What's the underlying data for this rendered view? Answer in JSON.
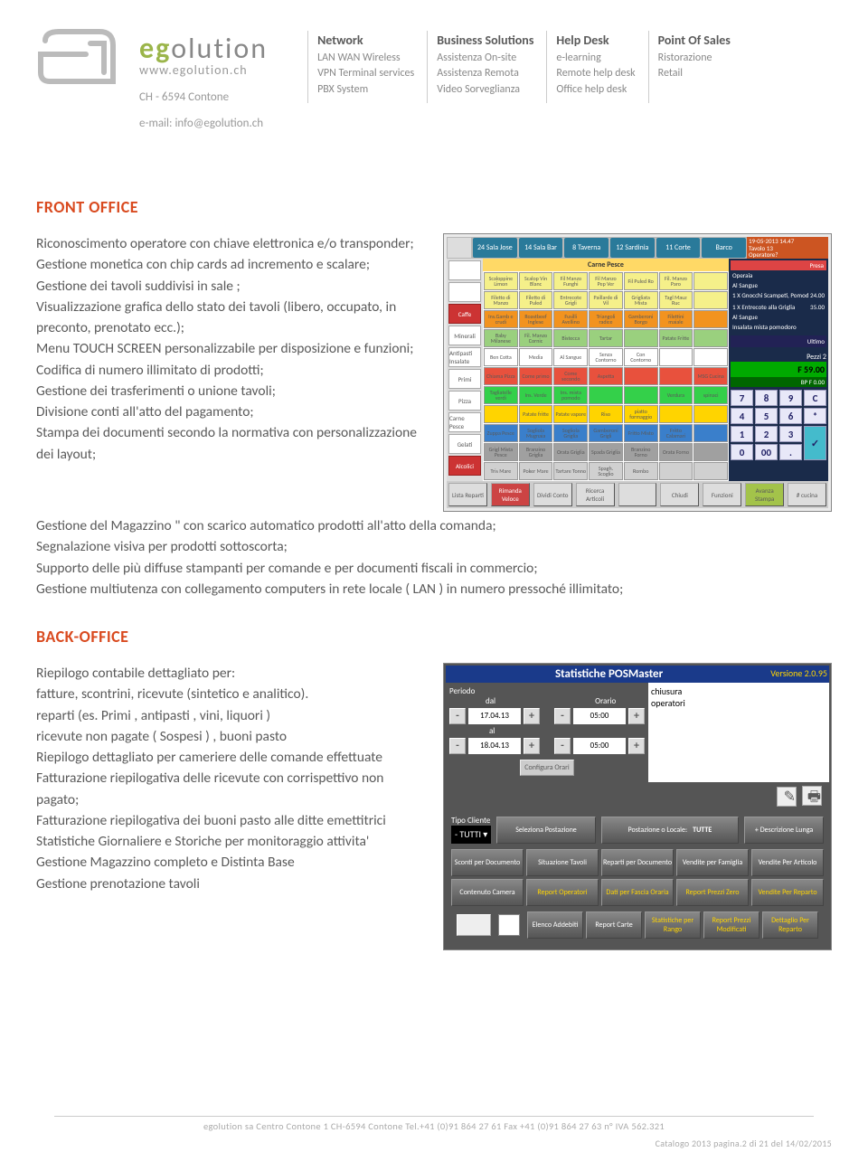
{
  "brand": {
    "name_pre": "eg",
    "name_post": "olution",
    "url": "www.egolution.ch",
    "addr1": "CH - 6594 Contone",
    "addr2": "e-mail: info@egolution.ch"
  },
  "cols": [
    {
      "h": "Network",
      "items": [
        "LAN WAN Wireless",
        "VPN Terminal services",
        "PBX System"
      ]
    },
    {
      "h": "Business Solutions",
      "items": [
        "Assistenza On-site",
        "Assistenza Remota",
        "Video Sorveglianza"
      ]
    },
    {
      "h": "Help Desk",
      "items": [
        "e-learning",
        "Remote help desk",
        "Office help desk"
      ]
    },
    {
      "h": "Point Of Sales",
      "items": [
        "Ristorazione",
        "Retail"
      ]
    }
  ],
  "front": {
    "title": "FRONT OFFICE",
    "para1": "Riconoscimento operatore con chiave elettronica e/o transponder;\nGestione monetica con chip cards ad incremento e scalare;\nGestione dei tavoli suddivisi in sale ;\nVisualizzazione grafica dello stato dei tavoli (libero, occupato, in preconto, prenotato ecc.);\nMenu TOUCH SCREEN personalizzabile per disposizione e funzioni;\nCodifica di numero illimitato di prodotti;\nGestione dei trasferimenti o unione tavoli;\nDivisione conti all'atto del pagamento;\nStampa dei documenti secondo la normativa con personalizzazione dei layout;",
    "para2": "Gestione del Magazzino \" con scarico automatico prodotti all'atto della comanda;\nSegnalazione visiva per prodotti sottoscorta;\nSupporto delle più diffuse stampanti per comande e per  documenti fiscali  in commercio;\nGestione multiutenza con collegamento computers in rete locale ( LAN ) in numero pressoché illimitato;"
  },
  "back": {
    "title": "BACK-OFFICE",
    "para": "Riepilogo contabile dettagliato per:\nfatture, scontrini, ricevute (sintetico e analitico).\nreparti (es. Primi , antipasti , vini, liquori )\nricevute non pagate ( Sospesi ) , buoni pasto\nRiepilogo dettagliato per cameriere delle comande effettuate\nFatturazione riepilogativa delle ricevute con corrispettivo non pagato;\nFatturazione riepilogativa dei buoni pasto alle ditte emettitrici\nStatistiche Giornaliere e Storiche per monitoraggio attivita'\nGestione Magazzino completo e Distinta Base\nGestione prenotazione tavoli"
  },
  "pos": {
    "status_date": "19-05-2013 14.47",
    "status_table": "Tavolo 13",
    "status_op": "Operatore?",
    "tabs": [
      "24 Sala Jose",
      "14 Sala Bar",
      "8 Taverna",
      "12 Sardinia",
      "11 Corte",
      "Barco"
    ],
    "left": [
      "",
      "",
      "Caffe",
      "Minerali",
      "Antipasti Insalate",
      "Primi",
      "Pizza",
      "Carne Pesce",
      "Gelati",
      "Alcolici"
    ],
    "grid_head": "Carne Pesce",
    "cells": [
      {
        "t": "Scaloppine Limon",
        "c": "#f5f08a"
      },
      {
        "t": "Scalop Vin Blanc",
        "c": "#f5f08a"
      },
      {
        "t": "Fil Manzo Funghi",
        "c": "#f5f08a"
      },
      {
        "t": "Fil Manzo Pep Ver",
        "c": "#f5f08a"
      },
      {
        "t": "Fil Puled Ro",
        "c": "#f5f08a"
      },
      {
        "t": "Fil. Manzo Paro",
        "c": "#f5f08a"
      },
      {
        "t": "",
        "c": "#f5f08a"
      },
      {
        "t": "Filetto di Manzo",
        "c": "#f5f08a"
      },
      {
        "t": "Filetto di Puled",
        "c": "#f5f08a"
      },
      {
        "t": "Entrecote Grigli",
        "c": "#f5f08a"
      },
      {
        "t": "Paillarde di Vil",
        "c": "#f5f08a"
      },
      {
        "t": "Grigliata Mista",
        "c": "#f5f08a"
      },
      {
        "t": "Tagl Mauz Ruc",
        "c": "#f5f08a"
      },
      {
        "t": "",
        "c": "#f5f08a"
      },
      {
        "t": "Ins.Gamb e crudi",
        "c": "#f2931f"
      },
      {
        "t": "Roastbeef Inglese",
        "c": "#f2931f"
      },
      {
        "t": "Fusilli Avellino",
        "c": "#f2931f"
      },
      {
        "t": "Triangoli radice",
        "c": "#f2931f"
      },
      {
        "t": "Gamberoni Borgo",
        "c": "#f2931f"
      },
      {
        "t": "Filettini maiale",
        "c": "#f2931f"
      },
      {
        "t": "",
        "c": "#f2931f"
      },
      {
        "t": "Baby Milanese",
        "c": "#9ad07e"
      },
      {
        "t": "Fil. Manzo Cornic",
        "c": "#9ad07e"
      },
      {
        "t": "Bistecca",
        "c": "#9ad07e"
      },
      {
        "t": "Tartar",
        "c": "#9ad07e"
      },
      {
        "t": "",
        "c": "#9ad07e"
      },
      {
        "t": "Patate Fritte",
        "c": "#9ad07e"
      },
      {
        "t": "",
        "c": "#9ad07e"
      },
      {
        "t": "Ben Cotta",
        "c": "#ffffff"
      },
      {
        "t": "Media",
        "c": "#ffffff"
      },
      {
        "t": "Al Sangue",
        "c": "#ffffff"
      },
      {
        "t": "Senza Contorno",
        "c": "#ffffff"
      },
      {
        "t": "Con Contorno",
        "c": "#ffffff"
      },
      {
        "t": "",
        "c": "#ffffff"
      },
      {
        "t": "",
        "c": "#ffffff"
      },
      {
        "t": "Chiama Pizza",
        "c": "#e8513d"
      },
      {
        "t": "Come primo",
        "c": "#e8513d"
      },
      {
        "t": "Come secondo",
        "c": "#e8513d"
      },
      {
        "t": "Aspetta",
        "c": "#e8513d"
      },
      {
        "t": "",
        "c": "#e8513d"
      },
      {
        "t": "",
        "c": "#e8513d"
      },
      {
        "t": "MSG Cucina",
        "c": "#e8513d"
      },
      {
        "t": "Tagliatelle verdi",
        "c": "#34d04a"
      },
      {
        "t": "Ins. Verde",
        "c": "#34d04a"
      },
      {
        "t": "Ins. mista pomodo",
        "c": "#34d04a"
      },
      {
        "t": "",
        "c": "#34d04a"
      },
      {
        "t": "",
        "c": "#34d04a"
      },
      {
        "t": "Verdura",
        "c": "#34d04a"
      },
      {
        "t": "spinaci",
        "c": "#34d04a"
      },
      {
        "t": "",
        "c": "#ffd400"
      },
      {
        "t": "Patate fritte",
        "c": "#ffd400"
      },
      {
        "t": "Patate vapore",
        "c": "#ffd400"
      },
      {
        "t": "Riso",
        "c": "#ffd400"
      },
      {
        "t": "piatto formaggio",
        "c": "#ffd400"
      },
      {
        "t": "",
        "c": "#ffd400"
      },
      {
        "t": "",
        "c": "#ffd400"
      },
      {
        "t": "Zuppa Pesce",
        "c": "#3a7fcb"
      },
      {
        "t": "Sogliola Mugnaia",
        "c": "#3a7fcb"
      },
      {
        "t": "Sogliola Griglia",
        "c": "#3a7fcb"
      },
      {
        "t": "Gamberoni Grigli",
        "c": "#3a7fcb"
      },
      {
        "t": "Fritto Misto",
        "c": "#3a7fcb"
      },
      {
        "t": "Fritto Calamari",
        "c": "#3a7fcb"
      },
      {
        "t": "",
        "c": "#3a7fcb"
      },
      {
        "t": "Grigl Mista Pesce",
        "c": "#a0a0a0"
      },
      {
        "t": "Branzino Griglia",
        "c": "#a0a0a0"
      },
      {
        "t": "Orata Griglia",
        "c": "#a0a0a0"
      },
      {
        "t": "Spada Griglia",
        "c": "#a0a0a0"
      },
      {
        "t": "Branzino Forno",
        "c": "#a0a0a0"
      },
      {
        "t": "Orata Forno",
        "c": "#a0a0a0"
      },
      {
        "t": "",
        "c": "#a0a0a0"
      },
      {
        "t": "Tris Mare",
        "c": "#d0d0d0"
      },
      {
        "t": "Poker Mare",
        "c": "#d0d0d0"
      },
      {
        "t": "Tartare Tonno",
        "c": "#d0d0d0"
      },
      {
        "t": "Spagh. Scoglio",
        "c": "#d0d0d0"
      },
      {
        "t": "Rombo",
        "c": "#d0d0d0"
      },
      {
        "t": "",
        "c": "#d0d0d0"
      },
      {
        "t": "",
        "c": "#d0d0d0"
      }
    ],
    "right_lines": [
      [
        "Operaia",
        ""
      ],
      [
        "Al Sangue",
        ""
      ],
      [
        "1 X Gnocchi Scampeti, Pomod",
        "24.00"
      ],
      [
        "",
        ""
      ],
      [
        "1 X Entrecote alla Griglia",
        "35.00"
      ],
      [
        "Al Sangue",
        ""
      ],
      [
        "Insalata mista pomodoro",
        ""
      ]
    ],
    "right_pezzi": "Pezzi 2",
    "right_f": "F     59.00",
    "right_bpf": "BP F    0.00",
    "keypad": [
      "7",
      "8",
      "9",
      "C",
      "4",
      "5",
      "6",
      "*",
      "1",
      "2",
      "3",
      "",
      "0",
      "00",
      ".",
      ""
    ],
    "bottom": [
      "Lista Reparti",
      "Rimanda Veloce",
      "Dividi Conto",
      "Ricerca Articoli",
      "",
      "Chiudi",
      "Funzioni",
      "Avanza Stampa",
      "# cucina"
    ],
    "ultimo": "Ultimo",
    "presa": "Presa"
  },
  "stat": {
    "title": "Statistiche POSMaster",
    "version": "Versione 2.0.95",
    "periodo": "Periodo",
    "dal": "dal",
    "al": "al",
    "orario": "Orario",
    "d1": "17.04.13",
    "d2": "18.04.13",
    "t1": "05:00",
    "t2": "05:00",
    "list": [
      "chiusura",
      "operatori"
    ],
    "conf": "Configura Orari",
    "tipo": "Tipo Cliente",
    "tutti": "- TUTTI",
    "sel_post": "Seleziona Postazione",
    "post": "Postazione o Locale:",
    "tutte": "TUTTE",
    "desc": "+ Descrizione Lunga",
    "grid": [
      "Sconti per Documento",
      "Situazione Tavoli",
      "Reparti per Documento",
      "Vendite per Famiglia",
      "Vendite Per Articolo",
      "Contenuto Camera",
      "Report Operatori",
      "Dati per Fascia Oraria",
      "Report Prezzi Zero",
      "Vendite Per Reparto",
      "",
      "Elenco Addebiti",
      "Report Carte",
      "Statistiche per Rango",
      "Report Prezzi Modificati",
      "Dettaglio Per Reparto"
    ]
  },
  "footer": {
    "l1": "egolution sa   Centro Contone 1   CH-6594 Contone   Tel.+41 (0)91 864 27 61   Fax +41 (0)91 864 27 63   n° IVA 562.321",
    "l2": "Catalogo 2013 pagina.2 di 21 del 14/02/2015"
  }
}
